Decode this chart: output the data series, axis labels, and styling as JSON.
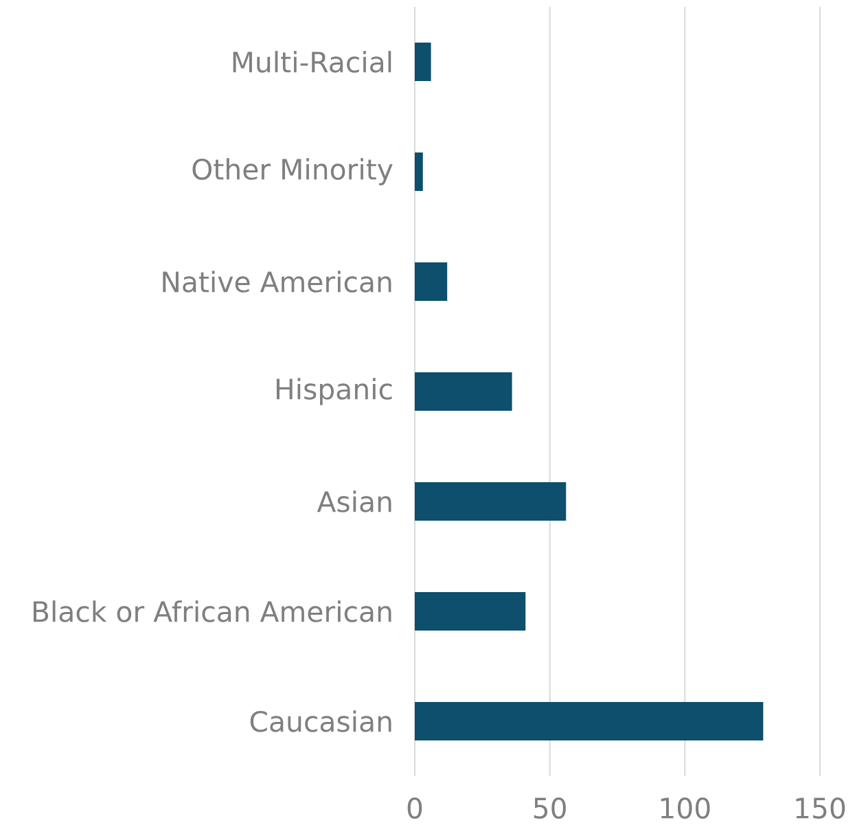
{
  "chart_data": {
    "type": "bar",
    "orientation": "horizontal",
    "categories": [
      "Multi-Racial",
      "Other Minority",
      "Native American",
      "Hispanic",
      "Asian",
      "Black or African American",
      "Caucasian"
    ],
    "values": [
      6,
      3,
      12,
      36,
      56,
      41,
      129
    ],
    "color": "#0d4f6c",
    "xlim": [
      0,
      150
    ],
    "xticks": [
      0,
      50,
      100,
      150
    ],
    "grid": "x"
  }
}
